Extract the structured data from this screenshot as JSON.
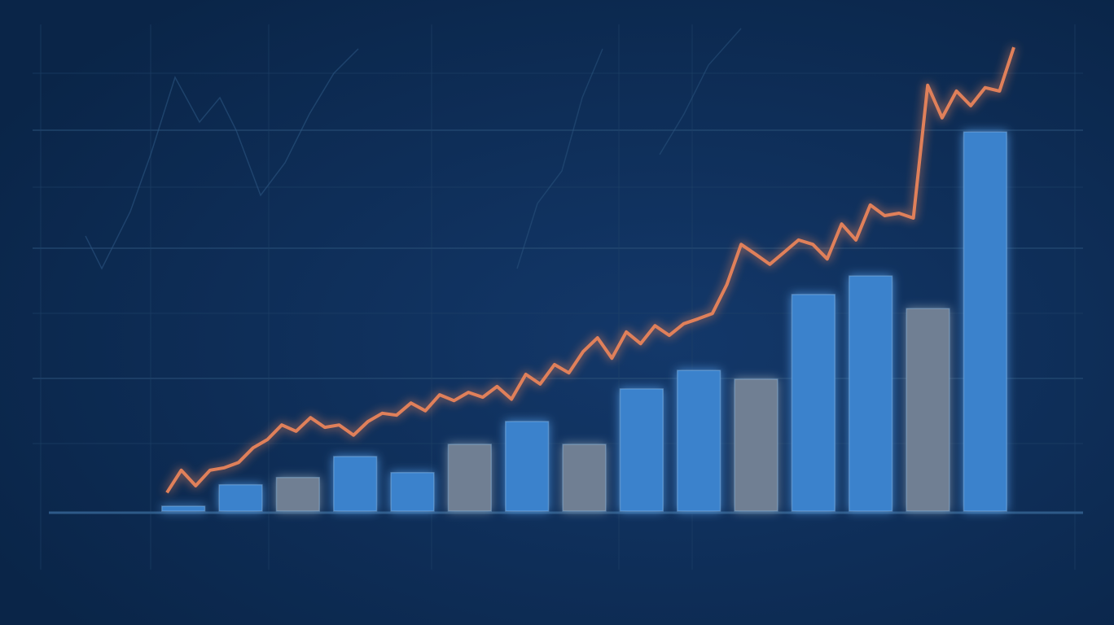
{
  "chart_data": {
    "type": "bar-line",
    "categories": [
      null,
      null,
      null,
      null,
      null,
      null,
      null,
      null,
      null,
      null,
      null,
      null,
      null,
      null,
      null
    ],
    "values": [
      1,
      5.4,
      6.9,
      11.2,
      7.9,
      13.7,
      18.4,
      13.7,
      25.1,
      28.9,
      27.1,
      44.5,
      48.3,
      41.6,
      77.9
    ],
    "colors": [
      "#3b82cc",
      "#3b82cc",
      "#6f7f93",
      "#3b82cc",
      "#3b82cc",
      "#6f7f93",
      "#3b82cc",
      "#6f7f93",
      "#3b82cc",
      "#3b82cc",
      "#6f7f93",
      "#3b82cc",
      "#3b82cc",
      "#6f7f93",
      "#3b82cc"
    ],
    "line_values": [
      3.8,
      8.4,
      5.2,
      8.4,
      8.9,
      10.0,
      13.0,
      14.7,
      17.7,
      16.4,
      19.2,
      17.2,
      17.7,
      15.6,
      18.4,
      20.1,
      19.7,
      22.2,
      20.6,
      23.9,
      22.7,
      24.4,
      23.4,
      25.6,
      23.0,
      28.1,
      26.1,
      30.1,
      28.4,
      32.8,
      35.6,
      31.4,
      36.8,
      34.4,
      38.1,
      36.1,
      38.5,
      39.5,
      40.6,
      46.5,
      54.8,
      52.8,
      50.7,
      53.2,
      55.7,
      54.8,
      51.8,
      59.0,
      55.7,
      62.9,
      60.7,
      61.2,
      60.2,
      87.5,
      80.8,
      86.3,
      83.3,
      87.0,
      86.3,
      95.3
    ],
    "line_color": "#e0805a",
    "ylim": [
      0,
      100
    ]
  }
}
